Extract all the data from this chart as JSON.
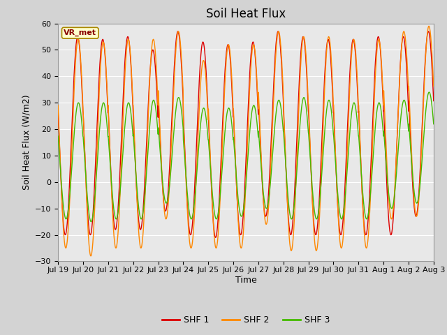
{
  "title": "Soil Heat Flux",
  "ylabel": "Soil Heat Flux (W/m2)",
  "xlabel": "Time",
  "ylim": [
    -30,
    60
  ],
  "yticks": [
    -30,
    -20,
    -10,
    0,
    10,
    20,
    30,
    40,
    50,
    60
  ],
  "xtick_labels": [
    "Jul 19",
    "Jul 20",
    "Jul 21",
    "Jul 22",
    "Jul 23",
    "Jul 24",
    "Jul 25",
    "Jul 26",
    "Jul 27",
    "Jul 28",
    "Jul 29",
    "Jul 30",
    "Jul 31",
    "Aug 1",
    "Aug 2",
    "Aug 3"
  ],
  "color_shf1": "#dd0000",
  "color_shf2": "#ff8800",
  "color_shf3": "#44bb00",
  "legend_box_label": "VR_met",
  "legend_labels": [
    "SHF 1",
    "SHF 2",
    "SHF 3"
  ],
  "bg_color": "#d3d3d3",
  "plot_bg_color": "#e8e8e8",
  "title_fontsize": 12,
  "axis_label_fontsize": 9,
  "tick_fontsize": 8
}
